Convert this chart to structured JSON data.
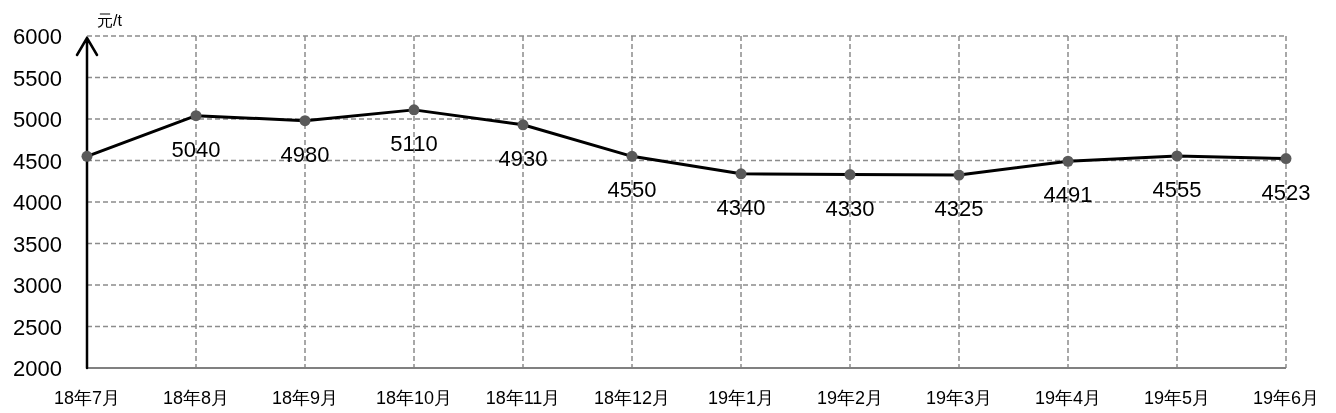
{
  "chart_data": {
    "type": "line",
    "ylabel": "元/t",
    "categories": [
      "18年7月",
      "18年8月",
      "18年9月",
      "18年10月",
      "18年11月",
      "18年12月",
      "19年1月",
      "19年2月",
      "19年3月",
      "19年4月",
      "19年5月",
      "19年6月"
    ],
    "series": [
      {
        "color": "#000000",
        "values": [
          4550,
          5040,
          4980,
          5110,
          4930,
          4550,
          4340,
          4330,
          4325,
          4491,
          4555,
          4523
        ],
        "value_labels": [
          null,
          "5040",
          "4980",
          "5110",
          "4930",
          "4550",
          "4340",
          "4330",
          "4325",
          "4491",
          "4555",
          "4523"
        ]
      }
    ],
    "ylim": [
      2000,
      6000
    ],
    "yticks": [
      2000,
      2500,
      3000,
      3500,
      4000,
      4500,
      5000,
      5500,
      6000
    ],
    "grid": true,
    "marker": "circle",
    "line_style": "solid"
  }
}
